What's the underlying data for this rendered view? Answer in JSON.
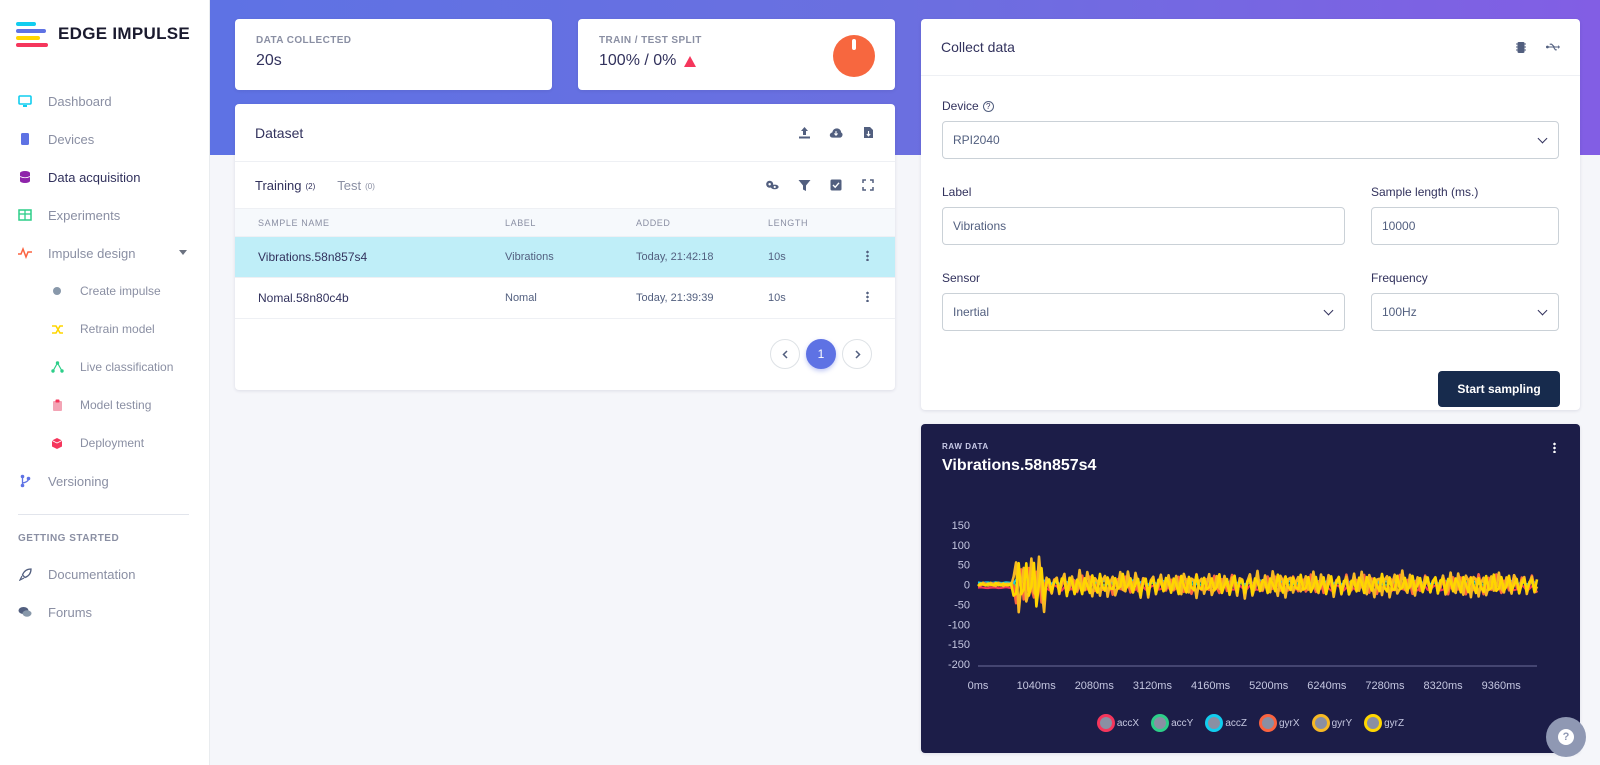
{
  "brand": {
    "name": "EDGE IMPULSE"
  },
  "sidebar": {
    "items": [
      {
        "label": "Dashboard",
        "icon": "monitor-icon",
        "color": "#11cdef"
      },
      {
        "label": "Devices",
        "icon": "chip-icon",
        "color": "#5e72e4"
      },
      {
        "label": "Data acquisition",
        "icon": "database-icon",
        "color": "#8e24aa"
      },
      {
        "label": "Experiments",
        "icon": "table-icon",
        "color": "#2dce89"
      },
      {
        "label": "Impulse design",
        "icon": "pulse-icon",
        "color": "#fb6340"
      },
      {
        "label": "Create impulse",
        "icon": "dot-icon",
        "color": "#8898aa"
      },
      {
        "label": "Retrain model",
        "icon": "shuffle-icon",
        "color": "#ffd600"
      },
      {
        "label": "Live classification",
        "icon": "network-icon",
        "color": "#2dce89"
      },
      {
        "label": "Model testing",
        "icon": "clipboard-icon",
        "color": "#f3a4b5"
      },
      {
        "label": "Deployment",
        "icon": "cube-icon",
        "color": "#f5365c"
      },
      {
        "label": "Versioning",
        "icon": "branch-icon",
        "color": "#5e72e4"
      }
    ],
    "getting_started_heading": "GETTING STARTED",
    "getting_started": [
      {
        "label": "Documentation",
        "icon": "rocket-icon"
      },
      {
        "label": "Forums",
        "icon": "chat-icon"
      }
    ]
  },
  "stats": {
    "collected_label": "DATA COLLECTED",
    "collected_value": "20s",
    "split_label": "TRAIN / TEST SPLIT",
    "split_value": "100% / 0%"
  },
  "dataset": {
    "title": "Dataset",
    "tabs": [
      {
        "label": "Training",
        "count": "(2)"
      },
      {
        "label": "Test",
        "count": "(0)"
      }
    ],
    "columns": [
      "SAMPLE NAME",
      "LABEL",
      "ADDED",
      "LENGTH"
    ],
    "rows": [
      {
        "name": "Vibrations.58n857s4",
        "label": "Vibrations",
        "added": "Today, 21:42:18",
        "length": "10s"
      },
      {
        "name": "Nomal.58n80c4b",
        "label": "Nomal",
        "added": "Today, 21:39:39",
        "length": "10s"
      }
    ],
    "page": "1"
  },
  "collect": {
    "title": "Collect data",
    "device_label": "Device",
    "device_value": "RPI2040",
    "label_label": "Label",
    "label_value": "Vibrations",
    "length_label": "Sample length (ms.)",
    "length_value": "10000",
    "sensor_label": "Sensor",
    "sensor_value": "Inertial",
    "frequency_label": "Frequency",
    "frequency_value": "100Hz",
    "start_button": "Start sampling"
  },
  "raw": {
    "label": "RAW DATA",
    "title": "Vibrations.58n857s4"
  },
  "chart_data": {
    "type": "line",
    "title": "",
    "xlabel": "",
    "ylabel": "",
    "ylim": [
      -200,
      150
    ],
    "xlim": [
      0,
      10000
    ],
    "yticks": [
      150,
      100,
      50,
      0,
      -50,
      -100,
      -150,
      -200
    ],
    "xticks": [
      "0ms",
      "1040ms",
      "2080ms",
      "3120ms",
      "4160ms",
      "5200ms",
      "6240ms",
      "7280ms",
      "8320ms",
      "9360ms"
    ],
    "legend": "bottom",
    "series": [
      {
        "name": "accX",
        "color": "#f5365c",
        "amplitude": 8,
        "offset": -8
      },
      {
        "name": "accY",
        "color": "#2dce89",
        "amplitude": 4,
        "offset": 2
      },
      {
        "name": "accZ",
        "color": "#11cdef",
        "amplitude": 6,
        "offset": 5
      },
      {
        "name": "gyrX",
        "color": "#fb6340",
        "amplitude": 25,
        "offset": 0
      },
      {
        "name": "gyrY",
        "color": "#f7b924",
        "amplitude": 35,
        "offset": 0
      },
      {
        "name": "gyrZ",
        "color": "#ffd600",
        "amplitude": 28,
        "offset": 0
      }
    ]
  }
}
